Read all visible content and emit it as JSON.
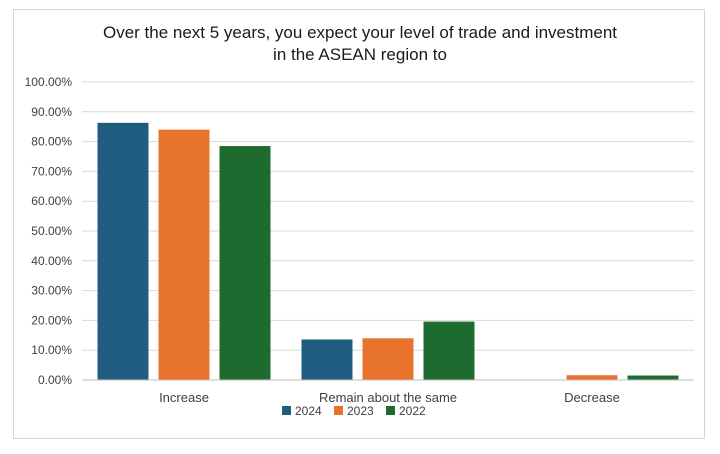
{
  "chart_data": {
    "type": "bar",
    "title_lines": [
      "Over the next 5 years, you expect your level of trade and investment",
      "in the ASEAN region to"
    ],
    "categories": [
      "Increase",
      "Remain about the same",
      "Decrease"
    ],
    "series": [
      {
        "name": "2024",
        "color": "#1f5c80",
        "values": [
          86.3,
          13.6,
          0.0
        ]
      },
      {
        "name": "2023",
        "color": "#e8732c",
        "values": [
          84.0,
          14.0,
          1.6
        ]
      },
      {
        "name": "2022",
        "color": "#1e6b2f",
        "values": [
          78.5,
          19.6,
          1.5
        ]
      }
    ],
    "ylim": [
      0,
      100
    ],
    "y_ticks": [
      0,
      10,
      20,
      30,
      40,
      50,
      60,
      70,
      80,
      90,
      100
    ],
    "y_tick_labels": [
      "0.00%",
      "10.00%",
      "20.00%",
      "30.00%",
      "40.00%",
      "50.00%",
      "60.00%",
      "70.00%",
      "80.00%",
      "90.00%",
      "100.00%"
    ],
    "grid": true,
    "legend_position": "bottom"
  }
}
